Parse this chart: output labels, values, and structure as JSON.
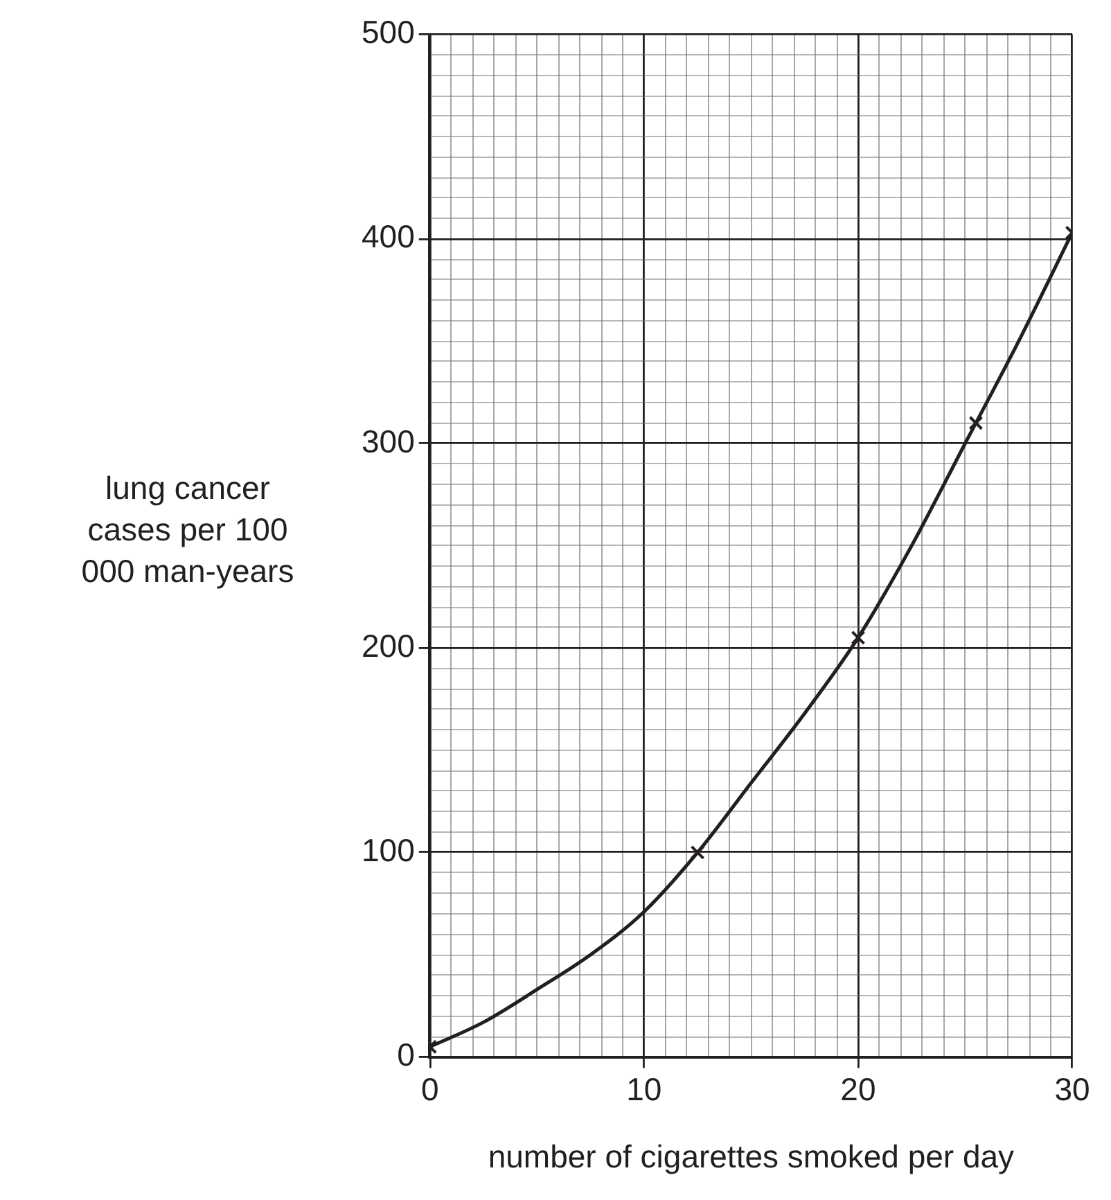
{
  "chart_data": {
    "type": "scatter",
    "xlabel": "number of cigarettes smoked per day",
    "ylabel": "lung cancer cases per 100 000 man-years",
    "series": [
      {
        "type": "scatter",
        "color": "#231f20",
        "marker": "cross",
        "x": [
          0,
          12.5,
          20,
          25.5,
          30
        ],
        "values": [
          5,
          100,
          205,
          310,
          403
        ]
      },
      {
        "type": "line",
        "color": "#231f20",
        "marker": "none",
        "line_style": "solid",
        "x": [
          0,
          2.5,
          5,
          7.5,
          10,
          12.5,
          15,
          17.5,
          20,
          22.5,
          25,
          27.5,
          30
        ],
        "values": [
          5,
          17,
          33,
          50,
          71,
          100,
          134,
          168,
          205,
          250,
          300,
          350,
          403
        ]
      }
    ],
    "xlim": [
      0,
      30
    ],
    "ylim": [
      0,
      500
    ],
    "xticks": [
      0,
      {
        "value": 1,
        "label": null
      },
      {
        "value": 2,
        "label": null
      },
      {
        "value": 3,
        "label": null
      },
      {
        "value": 4,
        "label": null
      },
      {
        "value": 5,
        "label": null
      },
      {
        "value": 6,
        "label": null
      },
      {
        "value": 7,
        "label": null
      },
      {
        "value": 8,
        "label": null
      },
      {
        "value": 9,
        "label": null
      },
      10,
      {
        "value": 11,
        "label": null
      },
      {
        "value": 12,
        "label": null
      },
      {
        "value": 13,
        "label": null
      },
      {
        "value": 14,
        "label": null
      },
      {
        "value": 15,
        "label": null
      },
      {
        "value": 16,
        "label": null
      },
      {
        "value": 17,
        "label": null
      },
      {
        "value": 18,
        "label": null
      },
      {
        "value": 19,
        "label": null
      },
      20,
      {
        "value": 21,
        "label": null
      },
      {
        "value": 22,
        "label": null
      },
      {
        "value": 23,
        "label": null
      },
      {
        "value": 24,
        "label": null
      },
      {
        "value": 25,
        "label": null
      },
      {
        "value": 26,
        "label": null
      },
      {
        "value": 27,
        "label": null
      },
      {
        "value": 28,
        "label": null
      },
      {
        "value": 29,
        "label": null
      },
      30
    ],
    "yticks": [
      0,
      {
        "value": 10,
        "label": null
      },
      {
        "value": 20,
        "label": null
      },
      {
        "value": 30,
        "label": null
      },
      {
        "value": 40,
        "label": null
      },
      {
        "value": 50,
        "label": null
      },
      {
        "value": 60,
        "label": null
      },
      {
        "value": 70,
        "label": null
      },
      {
        "value": 80,
        "label": null
      },
      {
        "value": 90,
        "label": null
      },
      100,
      {
        "value": 110,
        "label": null
      },
      {
        "value": 120,
        "label": null
      },
      {
        "value": 130,
        "label": null
      },
      {
        "value": 140,
        "label": null
      },
      {
        "value": 150,
        "label": null
      },
      {
        "value": 160,
        "label": null
      },
      {
        "value": 170,
        "label": null
      },
      {
        "value": 180,
        "label": null
      },
      {
        "value": 190,
        "label": null
      },
      200,
      {
        "value": 210,
        "label": null
      },
      {
        "value": 220,
        "label": null
      },
      {
        "value": 230,
        "label": null
      },
      {
        "value": 240,
        "label": null
      },
      {
        "value": 250,
        "label": null
      },
      {
        "value": 260,
        "label": null
      },
      {
        "value": 270,
        "label": null
      },
      {
        "value": 280,
        "label": null
      },
      {
        "value": 290,
        "label": null
      },
      300,
      {
        "value": 310,
        "label": null
      },
      {
        "value": 320,
        "label": null
      },
      {
        "value": 330,
        "label": null
      },
      {
        "value": 340,
        "label": null
      },
      {
        "value": 350,
        "label": null
      },
      {
        "value": 360,
        "label": null
      },
      {
        "value": 370,
        "label": null
      },
      {
        "value": 380,
        "label": null
      },
      {
        "value": 390,
        "label": null
      },
      400,
      {
        "value": 410,
        "label": null
      },
      {
        "value": 420,
        "label": null
      },
      {
        "value": 430,
        "label": null
      },
      {
        "value": 440,
        "label": null
      },
      {
        "value": 450,
        "label": null
      },
      {
        "value": 460,
        "label": null
      },
      {
        "value": 470,
        "label": null
      },
      {
        "value": 480,
        "label": null
      },
      {
        "value": 490,
        "label": null
      },
      500
    ],
    "grid": true,
    "legend": false
  }
}
